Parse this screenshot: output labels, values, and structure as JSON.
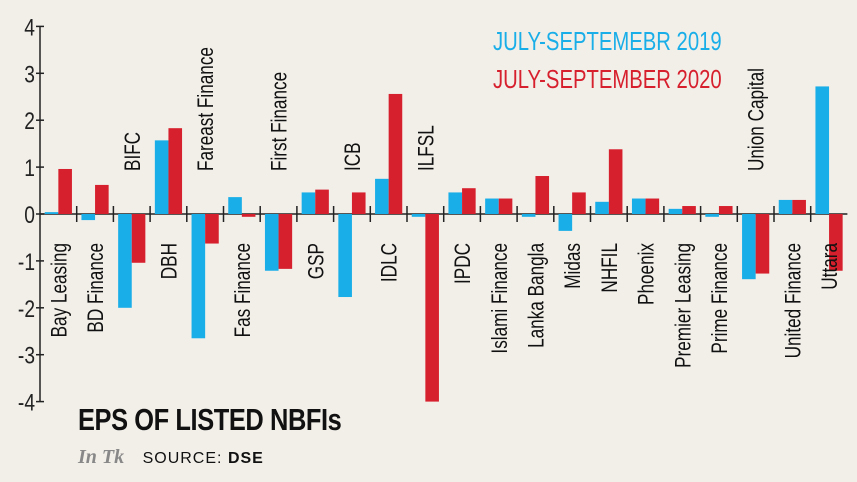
{
  "chart_data": {
    "type": "bar",
    "title": "EPS OF LISTED NBFIs",
    "unit": "In Tk",
    "source_label": "SOURCE:",
    "source": "DSE",
    "xlabel": "",
    "ylabel": "",
    "ylim": [
      -4,
      4
    ],
    "yticks": [
      4,
      3,
      2,
      1,
      0,
      -1,
      -2,
      -3,
      -4
    ],
    "legend_placement": "top-right",
    "categories": [
      "Bay Leasing",
      "BD Finance",
      "BIFC",
      "DBH",
      "Fareast Finance",
      "Fas Finance",
      "First Finance",
      "GSP",
      "ICB",
      "IDLC",
      "ILFSL",
      "IPDC",
      "Islami Finance",
      "Lanka Bangla",
      "Midas",
      "NHFIL",
      "Phoenix",
      "Premier Leasing",
      "Prime Finance",
      "Union Capital",
      "United Finance",
      "Uttara"
    ],
    "series": [
      {
        "name": "JULY-SEPTEMEBR 2019",
        "color": "#1aaee8",
        "values": [
          0.04,
          -0.13,
          -2.0,
          1.57,
          -2.65,
          0.36,
          -1.21,
          0.46,
          -1.77,
          0.75,
          -0.06,
          0.46,
          0.33,
          -0.06,
          -0.36,
          0.26,
          0.33,
          0.11,
          -0.06,
          -1.39,
          0.3,
          2.72
        ]
      },
      {
        "name": "JULY-SEPTEMBER 2020",
        "color": "#d7202e",
        "values": [
          0.96,
          0.62,
          -1.04,
          1.83,
          -0.63,
          -0.06,
          -1.17,
          0.52,
          0.46,
          2.56,
          -4.0,
          0.55,
          0.33,
          0.81,
          0.46,
          1.38,
          0.33,
          0.17,
          0.17,
          -1.27,
          0.3,
          -1.21
        ]
      }
    ]
  }
}
